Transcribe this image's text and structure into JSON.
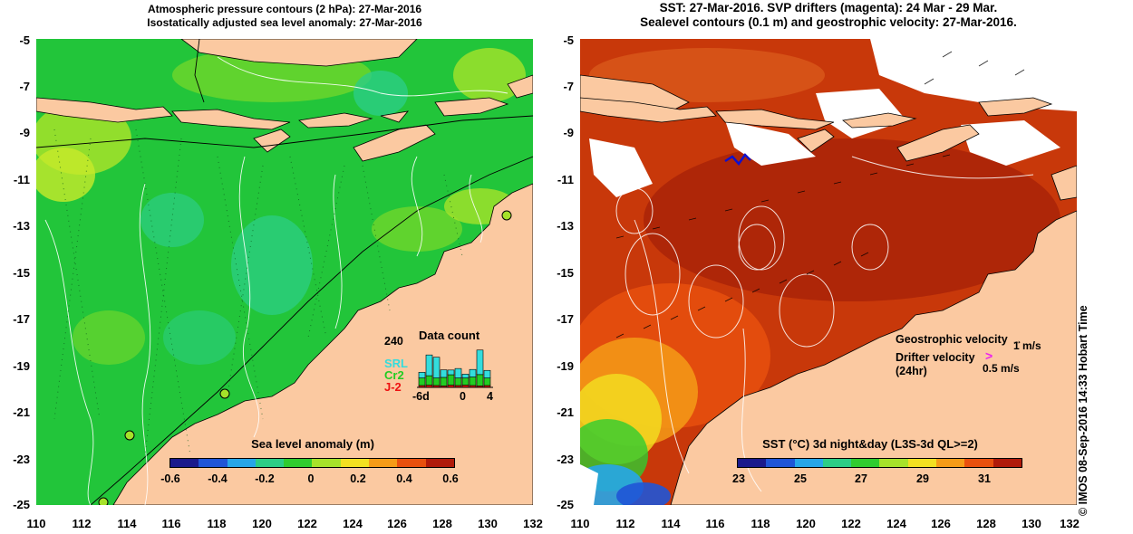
{
  "left_panel": {
    "title_line1": "Atmospheric pressure contours (2 hPa): 27-Mar-2016",
    "title_line2": "Isostatically adjusted sea level anomaly: 27-Mar-2016",
    "colorbar_title": "Sea level anomaly (m)",
    "colorbar_ticks": [
      "-0.6",
      "-0.4",
      "-0.2",
      "0",
      "0.2",
      "0.4",
      "0.6"
    ],
    "data_count": {
      "title": "Data count",
      "y_max": "240",
      "x_ticks": [
        "-6d",
        "0",
        "4"
      ],
      "satellites": [
        {
          "name": "SRL",
          "color": "#33dddd"
        },
        {
          "name": "Cr2",
          "color": "#22cc22"
        },
        {
          "name": "J-2",
          "color": "#ee1111"
        }
      ],
      "bars": [
        {
          "day": -6,
          "j2": 10,
          "cr2": 40,
          "srl": 30
        },
        {
          "day": -5,
          "j2": 12,
          "cr2": 50,
          "srl": 110
        },
        {
          "day": -4,
          "j2": 10,
          "cr2": 40,
          "srl": 110
        },
        {
          "day": -3,
          "j2": 8,
          "cr2": 45,
          "srl": 40
        },
        {
          "day": -2,
          "j2": 12,
          "cr2": 55,
          "srl": 25
        },
        {
          "day": -1,
          "j2": 10,
          "cr2": 40,
          "srl": 50
        },
        {
          "day": 0,
          "j2": 12,
          "cr2": 38,
          "srl": 20
        },
        {
          "day": 1,
          "j2": 10,
          "cr2": 45,
          "srl": 40
        },
        {
          "day": 2,
          "j2": 8,
          "cr2": 60,
          "srl": 130
        },
        {
          "day": 3,
          "j2": 10,
          "cr2": 40,
          "srl": 40
        }
      ]
    }
  },
  "right_panel": {
    "title_line1": "SST: 27-Mar-2016. SVP drifters (magenta): 24 Mar - 29 Mar.",
    "title_line2": "Sealevel contours (0.1 m) and geostrophic velocity: 27-Mar-2016.",
    "colorbar_title": "SST (°C) 3d night&day (L3S-3d QL>=2)",
    "colorbar_ticks": [
      "23",
      "25",
      "27",
      "29",
      "31"
    ],
    "geostrophic_label": "Geostrophic velocity",
    "geostrophic_scale": "1 m/s",
    "drifter_label_line1": "Drifter velocity",
    "drifter_label_line2": "(24hr)",
    "drifter_scale": "0.5 m/s",
    "credit": "© IMOS 08-Sep-2016 14:33 Hobart Time"
  },
  "axes": {
    "y_ticks": [
      "-5",
      "-7",
      "-9",
      "-11",
      "-13",
      "-15",
      "-17",
      "-19",
      "-21",
      "-23",
      "-25"
    ],
    "x_ticks": [
      "110",
      "112",
      "114",
      "116",
      "118",
      "120",
      "122",
      "124",
      "126",
      "128",
      "130",
      "132"
    ]
  },
  "colors": {
    "land": "#fbc9a1",
    "sla_background": "#22c53a",
    "sst_background": "#c8380a",
    "sla_colorbar": [
      "#1a1a8c",
      "#1f55d6",
      "#27a6e8",
      "#2ccd86",
      "#2fcc2f",
      "#a6e22a",
      "#f2e021",
      "#f59b17",
      "#e8500e",
      "#b01a0a"
    ],
    "sst_colorbar": [
      "#1a1a8c",
      "#1f55d6",
      "#27a6e8",
      "#2ccd86",
      "#2fcc2f",
      "#a6e22a",
      "#f2e021",
      "#f59b17",
      "#e8500e",
      "#b01a0a"
    ]
  }
}
